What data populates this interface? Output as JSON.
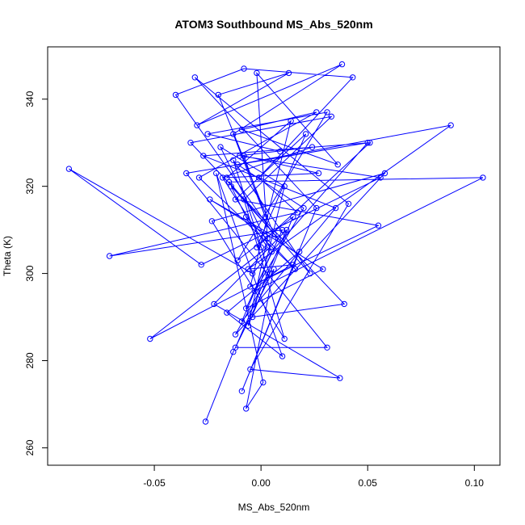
{
  "chart_data": {
    "type": "line",
    "title": "ATOM3 Southbound MS_Abs_520nm",
    "xlabel": "MS_Abs_520nm",
    "ylabel": "Theta (K)",
    "xlim": [
      -0.1,
      0.112
    ],
    "ylim": [
      256,
      352
    ],
    "xticks": [
      {
        "value": -0.05,
        "label": "-0.05"
      },
      {
        "value": 0.0,
        "label": "0.00"
      },
      {
        "value": 0.05,
        "label": "0.05"
      },
      {
        "value": 0.1,
        "label": "0.10"
      }
    ],
    "yticks": [
      {
        "value": 260,
        "label": "260"
      },
      {
        "value": 280,
        "label": "280"
      },
      {
        "value": 300,
        "label": "300"
      },
      {
        "value": 320,
        "label": "320"
      },
      {
        "value": 340,
        "label": "340"
      }
    ],
    "grid": false,
    "legend": "none",
    "color": "#0000ff",
    "marker": "open-circle",
    "series": [
      {
        "x": [
          -0.026,
          -0.013,
          0.006,
          -0.007,
          0.001,
          -0.021,
          0.01,
          -0.016,
          0.018,
          -0.009,
          0.026,
          -0.031,
          0.041,
          -0.005,
          0.037,
          -0.022,
          0.012,
          -0.012,
          0.031,
          -0.035,
          0.05,
          -0.004,
          -0.09,
          -0.028,
          0.056,
          -0.01,
          0.024,
          -0.018,
          0.003,
          -0.052,
          0.015,
          -0.006,
          0.089,
          -0.011,
          0.02,
          -0.003,
          0.104,
          -0.015,
          0.008,
          -0.024,
          0.029,
          -0.007,
          0.01,
          -0.071,
          0.017,
          -0.001,
          0.043,
          -0.008,
          -0.04,
          0.006,
          -0.02,
          0.013,
          -0.03,
          0.038,
          -0.013,
          0.002,
          -0.008,
          0.027,
          -0.016,
          0.014,
          -0.005,
          0.055,
          -0.012,
          0.021,
          -0.002,
          0.051,
          -0.027,
          0.035,
          -0.009,
          0.005,
          -0.019,
          0.011,
          -0.004,
          0.039,
          -0.033,
          0.033,
          -0.008,
          0.011,
          -0.023,
          0.058,
          -0.012,
          0.004,
          -0.013,
          0.023,
          -0.014,
          0.0,
          -0.007,
          0.016,
          -0.029,
          0.026,
          -0.009,
          0.036,
          -0.002,
          0.003,
          -0.006,
          0.015,
          -0.011,
          0.031,
          -0.025,
          0.009
        ],
        "y": [
          266,
          282,
          301,
          269,
          275,
          323,
          281,
          291,
          305,
          273,
          315,
          345,
          316,
          278,
          276,
          293,
          310,
          283,
          283,
          323,
          330,
          300,
          324,
          302,
          322,
          327,
          329,
          322,
          306,
          285,
          302,
          301,
          334,
          325,
          315,
          296,
          322,
          321,
          308,
          317,
          301,
          292,
          310,
          304,
          314,
          322,
          345,
          347,
          341,
          309,
          341,
          346,
          334,
          348,
          332,
          313,
          327,
          323,
          322,
          335,
          297,
          311,
          317,
          332,
          306,
          330,
          327,
          315,
          289,
          305,
          329,
          320,
          290,
          293,
          330,
          336,
          317,
          285,
          312,
          323,
          286,
          300,
          326,
          300,
          320,
          306,
          313,
          301,
          322,
          337,
          333,
          325,
          346,
          308,
          288,
          313,
          303,
          337,
          332,
          328
        ]
      }
    ]
  }
}
